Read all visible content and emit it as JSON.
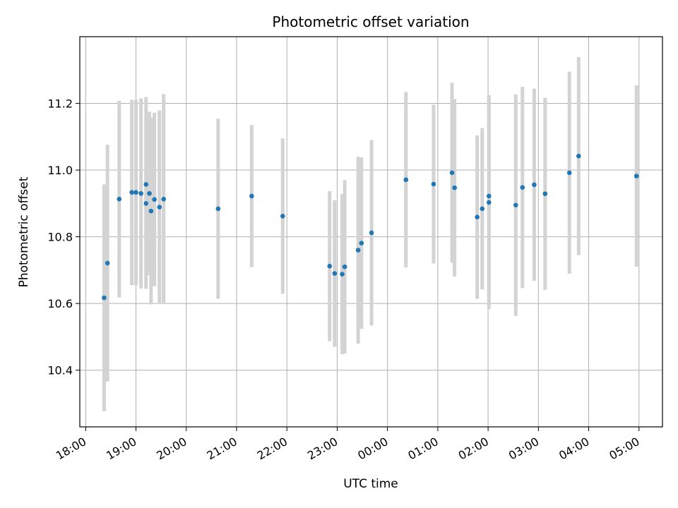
{
  "chart_data": {
    "type": "scatter",
    "title": "Photometric offset variation",
    "xlabel": "UTC time",
    "ylabel": "Photometric offset",
    "x_axis": "time",
    "x_ticks": [
      "18:00",
      "19:00",
      "20:00",
      "21:00",
      "22:00",
      "23:00",
      "00:00",
      "01:00",
      "02:00",
      "03:00",
      "04:00",
      "05:00"
    ],
    "xlim": [
      "17:53",
      "05:28"
    ],
    "ylim": [
      10.23,
      11.4
    ],
    "y_ticks": [
      10.4,
      10.6,
      10.8,
      11.0,
      11.2
    ],
    "grid": true,
    "point_color": "#1f77b4",
    "errorbar_color": "#d3d3d3",
    "series": [
      {
        "points": [
          {
            "t": "18:22",
            "y": 10.617,
            "err": 0.34
          },
          {
            "t": "18:26",
            "y": 10.721,
            "err": 0.355
          },
          {
            "t": "18:40",
            "y": 10.913,
            "err": 0.295
          },
          {
            "t": "18:55",
            "y": 10.933,
            "err": 0.278
          },
          {
            "t": "19:00",
            "y": 10.933,
            "err": 0.278
          },
          {
            "t": "19:06",
            "y": 10.93,
            "err": 0.285
          },
          {
            "t": "19:12",
            "y": 10.957,
            "err": 0.262
          },
          {
            "t": "19:12",
            "y": 10.9,
            "err": 0.256
          },
          {
            "t": "19:16",
            "y": 10.93,
            "err": 0.245
          },
          {
            "t": "19:18",
            "y": 10.877,
            "err": 0.28
          },
          {
            "t": "19:22",
            "y": 10.912,
            "err": 0.26
          },
          {
            "t": "19:28",
            "y": 10.889,
            "err": 0.29
          },
          {
            "t": "19:33",
            "y": 10.913,
            "err": 0.315
          },
          {
            "t": "20:38",
            "y": 10.884,
            "err": 0.27
          },
          {
            "t": "21:18",
            "y": 10.922,
            "err": 0.213
          },
          {
            "t": "21:55",
            "y": 10.862,
            "err": 0.233
          },
          {
            "t": "22:51",
            "y": 10.712,
            "err": 0.225
          },
          {
            "t": "22:57",
            "y": 10.69,
            "err": 0.22
          },
          {
            "t": "23:06",
            "y": 10.688,
            "err": 0.24
          },
          {
            "t": "23:09",
            "y": 10.71,
            "err": 0.26
          },
          {
            "t": "23:25",
            "y": 10.76,
            "err": 0.28
          },
          {
            "t": "23:29",
            "y": 10.781,
            "err": 0.257
          },
          {
            "t": "23:41",
            "y": 10.812,
            "err": 0.278
          },
          {
            "t": "00:22",
            "y": 10.971,
            "err": 0.263
          },
          {
            "t": "00:55",
            "y": 10.958,
            "err": 0.238
          },
          {
            "t": "01:17",
            "y": 10.992,
            "err": 0.27
          },
          {
            "t": "01:20",
            "y": 10.947,
            "err": 0.266
          },
          {
            "t": "01:47",
            "y": 10.859,
            "err": 0.245
          },
          {
            "t": "01:53",
            "y": 10.884,
            "err": 0.242
          },
          {
            "t": "02:01",
            "y": 10.903,
            "err": 0.32
          },
          {
            "t": "02:01",
            "y": 10.922,
            "err": 0.303
          },
          {
            "t": "02:33",
            "y": 10.895,
            "err": 0.332
          },
          {
            "t": "02:41",
            "y": 10.948,
            "err": 0.302
          },
          {
            "t": "02:55",
            "y": 10.956,
            "err": 0.288
          },
          {
            "t": "03:08",
            "y": 10.929,
            "err": 0.288
          },
          {
            "t": "03:37",
            "y": 10.992,
            "err": 0.303
          },
          {
            "t": "03:48",
            "y": 11.042,
            "err": 0.297
          },
          {
            "t": "04:57",
            "y": 10.982,
            "err": 0.272
          }
        ]
      }
    ]
  }
}
